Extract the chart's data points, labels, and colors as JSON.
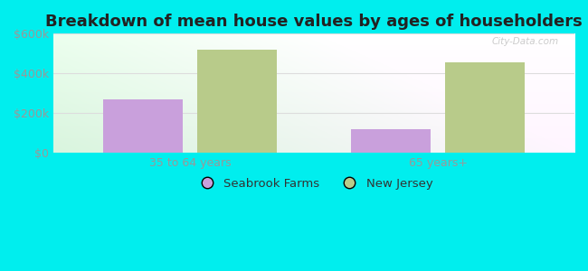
{
  "title": "Breakdown of mean house values by ages of householders",
  "categories": [
    "35 to 64 years",
    "65 years+"
  ],
  "seabrook_values": [
    270000,
    120000
  ],
  "nj_values": [
    520000,
    455000
  ],
  "seabrook_color": "#c9a0dc",
  "nj_color": "#b8cb8a",
  "background_color": "#00eeee",
  "ylim": [
    0,
    600000
  ],
  "yticks": [
    0,
    200000,
    400000,
    600000
  ],
  "ytick_labels": [
    "$0",
    "$200k",
    "$400k",
    "$600k"
  ],
  "legend_seabrook": "Seabrook Farms",
  "legend_nj": "New Jersey",
  "bar_width": 0.32,
  "title_fontsize": 13,
  "tick_fontsize": 9,
  "legend_fontsize": 9.5,
  "grid_color": "#dddddd",
  "tick_color": "#999999",
  "title_color": "#222222"
}
